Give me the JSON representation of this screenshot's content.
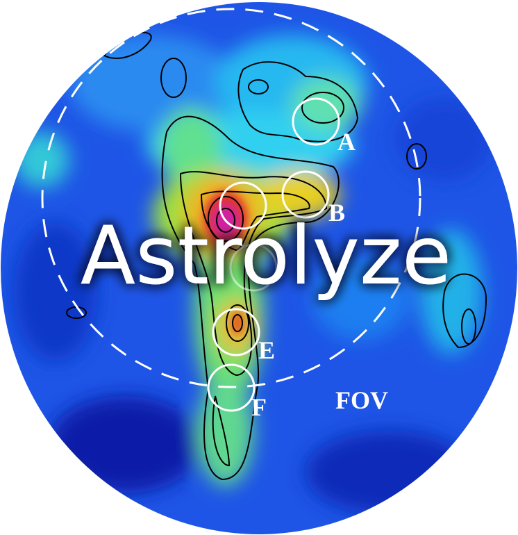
{
  "title": "Astrolyze",
  "fov_label": "FOV",
  "regions": [
    "A",
    "B",
    "E",
    "F"
  ]
}
